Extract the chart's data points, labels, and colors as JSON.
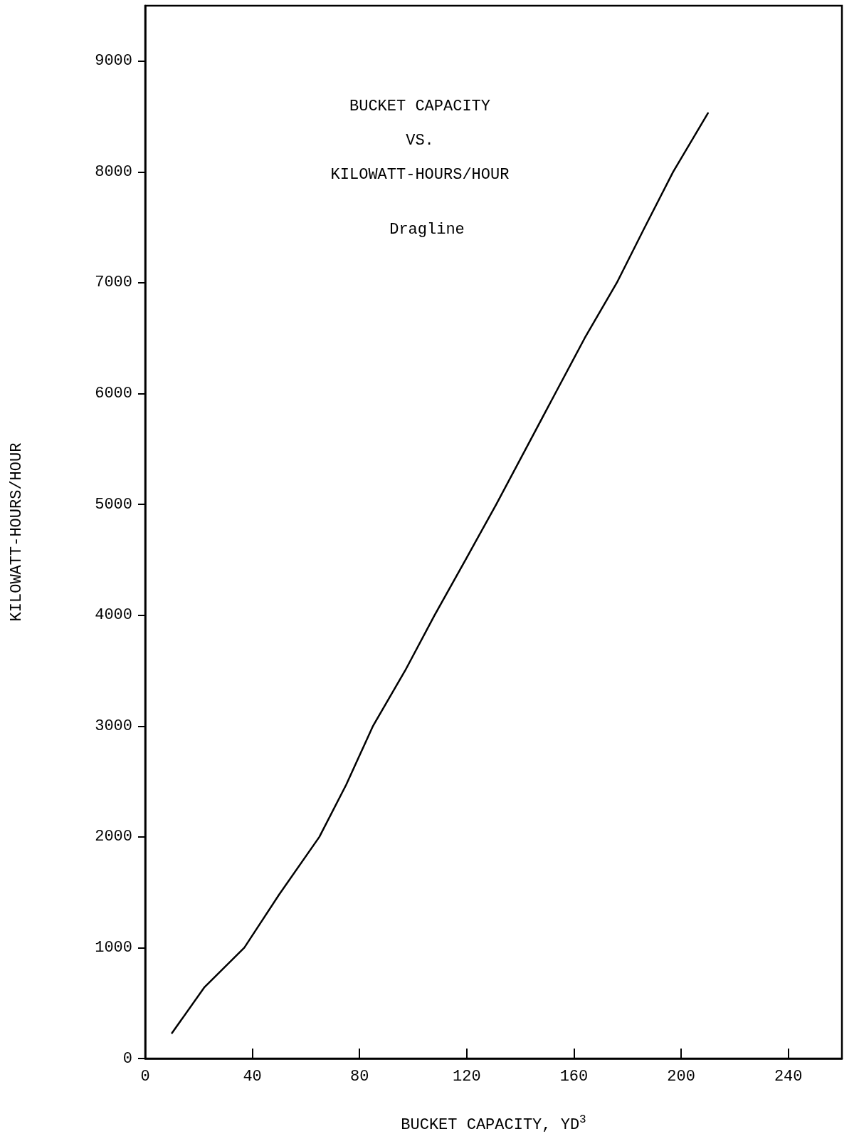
{
  "chart_data": {
    "type": "line",
    "title": "BUCKET CAPACITY\nVS.\nKILOWATT-HOURS/HOUR",
    "subtitle": "Dragline",
    "xlabel": "BUCKET CAPACITY, YD$^{3}$",
    "ylabel": "KILOWATT-HOURS/HOUR",
    "x": [
      10,
      22,
      37,
      50,
      65,
      75,
      85,
      97,
      108,
      120,
      131,
      142,
      153,
      164,
      176,
      186,
      197,
      210
    ],
    "series": [
      {
        "color": "#000000",
        "values": [
          230,
          640,
          1000,
          1480,
          2000,
          2470,
          3000,
          3500,
          4000,
          4520,
          5000,
          5500,
          6000,
          6500,
          7000,
          7480,
          8000,
          8530
        ]
      }
    ],
    "xlim": [
      0,
      260
    ],
    "xticks": [
      0,
      40,
      80,
      120,
      160,
      200,
      240
    ],
    "ylim": [
      0,
      9500
    ],
    "yticks": [
      0,
      1000,
      2000,
      3000,
      4000,
      5000,
      6000,
      7000,
      8000,
      9000
    ],
    "marker": "none",
    "line_style": "solid"
  }
}
